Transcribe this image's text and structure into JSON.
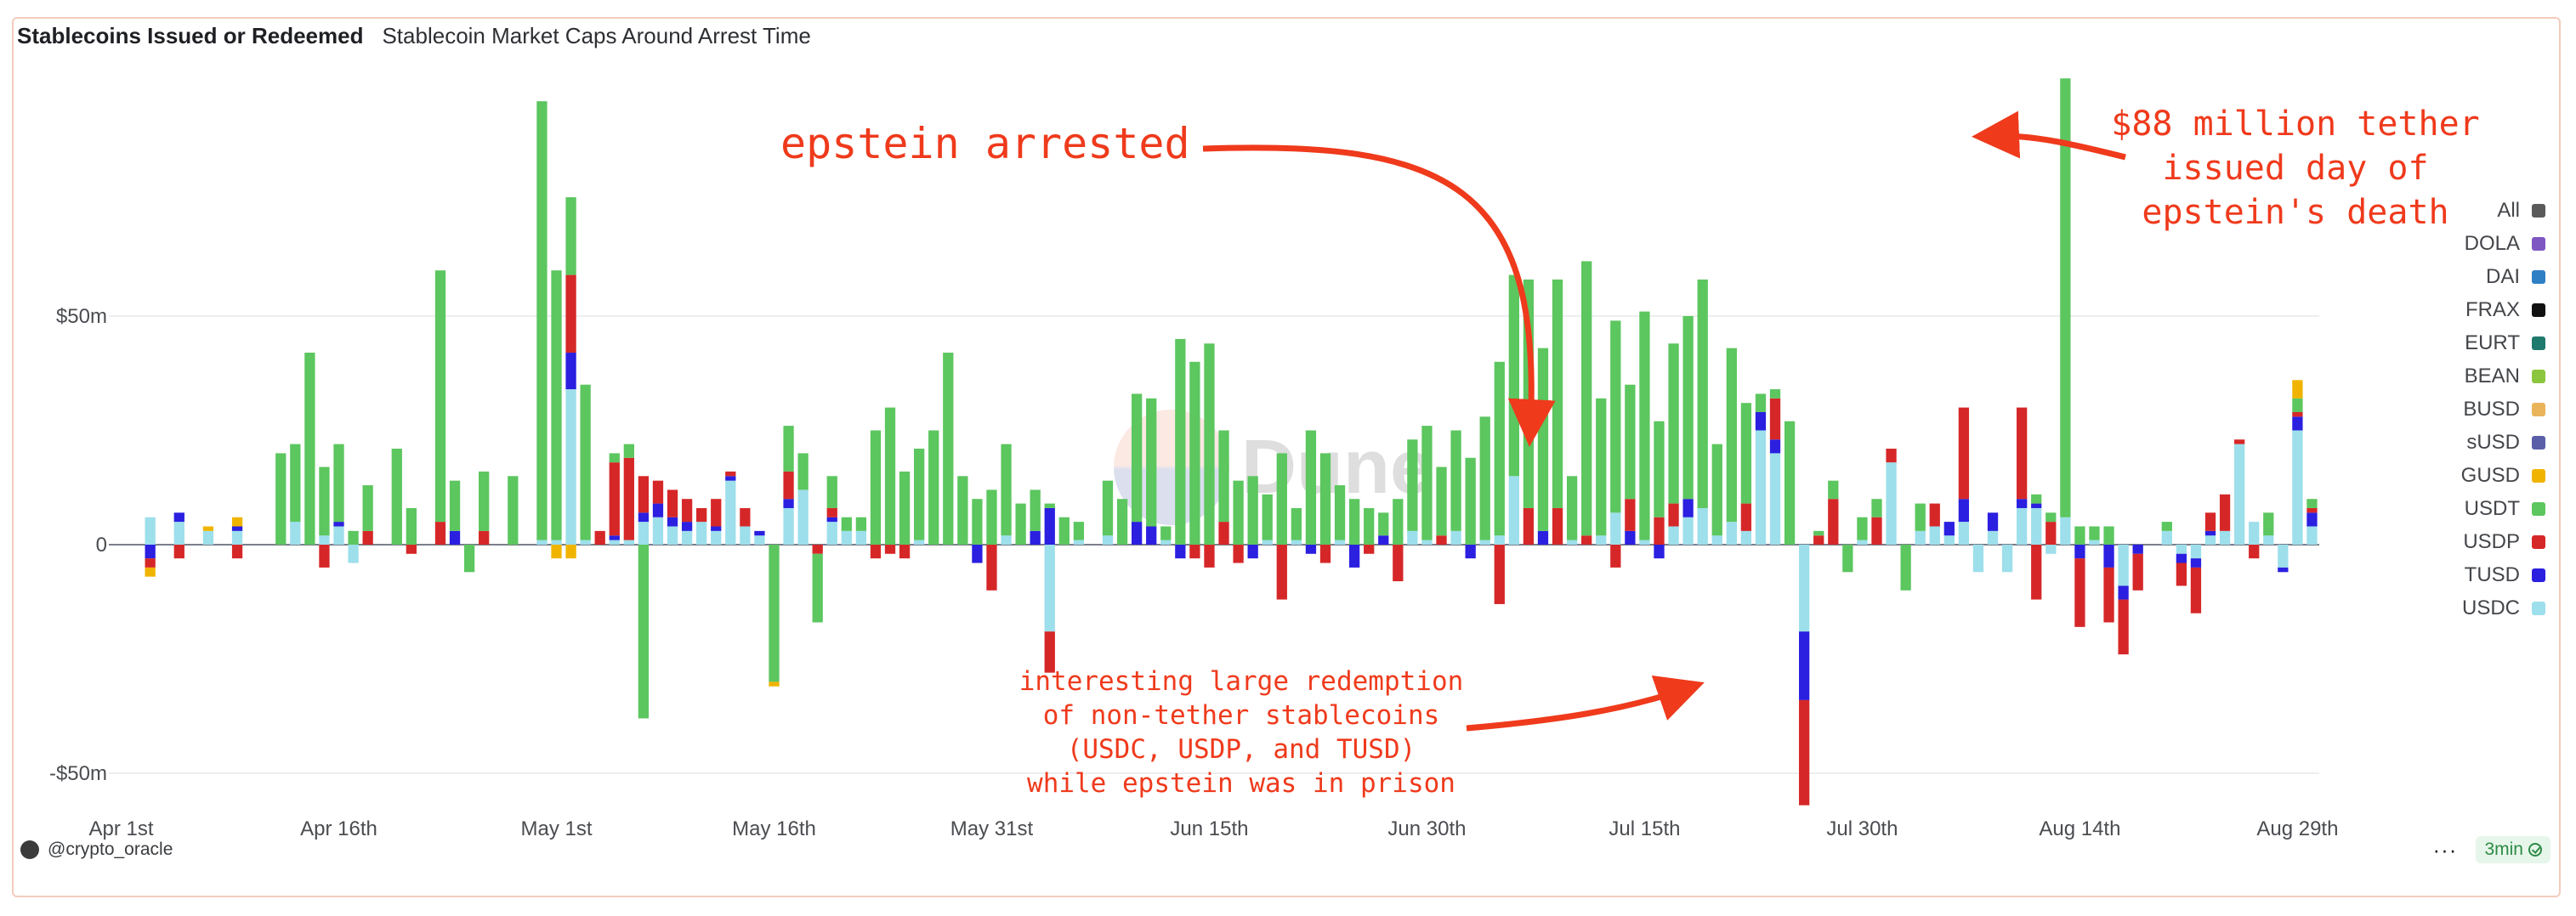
{
  "header": {
    "active_tab": "Stablecoins Issued or Redeemed",
    "tab": "Stablecoin Market Caps Around Arrest Time"
  },
  "watermark": "Dune",
  "footer": {
    "author": "@crypto_oracle",
    "menu_label": "···",
    "badge": "3min"
  },
  "legend": [
    {
      "label": "All",
      "color": "#5a5a5a"
    },
    {
      "label": "DOLA",
      "color": "#7e57c2"
    },
    {
      "label": "DAI",
      "color": "#2f7fc4"
    },
    {
      "label": "FRAX",
      "color": "#111111"
    },
    {
      "label": "EURT",
      "color": "#1f7a6e"
    },
    {
      "label": "BEAN",
      "color": "#8cc63f"
    },
    {
      "label": "BUSD",
      "color": "#e9b45a"
    },
    {
      "label": "sUSD",
      "color": "#5b5fa8"
    },
    {
      "label": "GUSD",
      "color": "#f0b400"
    },
    {
      "label": "USDT",
      "color": "#5cc65f"
    },
    {
      "label": "USDP",
      "color": "#d62728"
    },
    {
      "label": "TUSD",
      "color": "#2b1fe0"
    },
    {
      "label": "USDC",
      "color": "#9ddfeb"
    }
  ],
  "annotations": {
    "arrested": "epstein arrested",
    "death": [
      "$88 million tether",
      "issued day of",
      "epstein's death"
    ],
    "redemption": [
      "interesting large redemption",
      "of non-tether stablecoins",
      "(USDC, USDP, and TUSD)",
      "while epstein was in prison"
    ]
  },
  "chart_data": {
    "type": "bar",
    "stacked": true,
    "title": "Stablecoins Issued or Redeemed",
    "xlabel": "",
    "ylabel": "",
    "ylim": [
      -57,
      97
    ],
    "y_ticks": [
      {
        "value": 50,
        "label": "$50m"
      },
      {
        "value": 0,
        "label": "0"
      },
      {
        "value": -50,
        "label": "-$50m"
      }
    ],
    "x_ticks": [
      {
        "day": 0,
        "label": "Apr 1st"
      },
      {
        "day": 15,
        "label": "Apr 16th"
      },
      {
        "day": 30,
        "label": "May 1st"
      },
      {
        "day": 45,
        "label": "May 16th"
      },
      {
        "day": 60,
        "label": "May 31st"
      },
      {
        "day": 75,
        "label": "Jun 15th"
      },
      {
        "day": 90,
        "label": "Jun 30th"
      },
      {
        "day": 105,
        "label": "Jul 15th"
      },
      {
        "day": 120,
        "label": "Jul 30th"
      },
      {
        "day": 135,
        "label": "Aug 14th"
      },
      {
        "day": 150,
        "label": "Aug 29th"
      }
    ],
    "days": 152,
    "grid": true,
    "series_order": [
      "USDC",
      "TUSD",
      "USDP",
      "USDT",
      "GUSD"
    ],
    "values_usd_millions": {
      "2": {
        "USDC": 6,
        "TUSD": -3,
        "USDP": -2,
        "GUSD": -2
      },
      "4": {
        "USDC": 5,
        "TUSD": 2,
        "USDP": -3
      },
      "6": {
        "USDC": 3,
        "GUSD": 1
      },
      "8": {
        "USDC": 3,
        "TUSD": 1,
        "GUSD": 2,
        "USDP": -3
      },
      "11": {
        "USDT": 20
      },
      "12": {
        "USDT": 17,
        "USDC": 5
      },
      "13": {
        "USDT": 42
      },
      "14": {
        "USDT": 15,
        "USDC": 2,
        "USDP": -5
      },
      "15": {
        "USDT": 17,
        "USDC": 4,
        "TUSD": 1
      },
      "16": {
        "USDT": 3,
        "USDC": -4
      },
      "17": {
        "USDT": 10,
        "USDP": 3
      },
      "19": {
        "USDT": 21
      },
      "20": {
        "USDT": 8,
        "USDP": -2
      },
      "22": {
        "USDT": 55,
        "USDP": 5
      },
      "23": {
        "USDT": 11,
        "TUSD": 3
      },
      "24": {
        "USDT": -6
      },
      "25": {
        "USDT": 13,
        "USDP": 3
      },
      "27": {
        "USDT": 15
      },
      "29": {
        "USDT": 96,
        "USDC": 1
      },
      "30": {
        "USDT": 59,
        "USDC": 1,
        "GUSD": -3
      },
      "31": {
        "USDT": 17,
        "USDC": 34,
        "TUSD": 8,
        "USDP": 17,
        "GUSD": -3
      },
      "32": {
        "USDT": 34,
        "USDC": 1
      },
      "33": {
        "USDP": 3
      },
      "34": {
        "USDT": 2,
        "USDC": 1,
        "TUSD": 1,
        "USDP": 16
      },
      "35": {
        "USDT": 3,
        "USDC": 1,
        "USDP": 18
      },
      "36": {
        "USDT": -38,
        "USDC": 5,
        "TUSD": 2,
        "USDP": 8
      },
      "37": {
        "USDC": 6,
        "TUSD": 3,
        "USDP": 5
      },
      "38": {
        "USDC": 4,
        "TUSD": 2,
        "USDP": 6
      },
      "39": {
        "USDC": 3,
        "TUSD": 2,
        "USDP": 5
      },
      "40": {
        "USDC": 5,
        "USDP": 3
      },
      "41": {
        "USDC": 3,
        "TUSD": 1,
        "USDP": 6
      },
      "42": {
        "USDC": 14,
        "TUSD": 1,
        "USDP": 1
      },
      "43": {
        "USDC": 4,
        "USDP": 4
      },
      "44": {
        "USDC": 2,
        "TUSD": 1
      },
      "45": {
        "USDT": -30,
        "GUSD": -1
      },
      "46": {
        "USDT": 10,
        "TUSD": 2,
        "USDP": 6,
        "USDC": 8
      },
      "47": {
        "USDT": 8,
        "USDC": 12
      },
      "48": {
        "USDT": -15,
        "USDP": -2
      },
      "49": {
        "USDT": 7,
        "USDC": 5,
        "TUSD": 1,
        "USDP": 2
      },
      "50": {
        "USDT": 3,
        "USDC": 3
      },
      "51": {
        "USDT": 3,
        "USDC": 3
      },
      "52": {
        "USDT": 25,
        "USDP": -3
      },
      "53": {
        "USDT": 30,
        "USDP": -2
      },
      "54": {
        "USDT": 16,
        "USDP": -3
      },
      "55": {
        "USDT": 20,
        "USDC": 1
      },
      "56": {
        "USDT": 25
      },
      "57": {
        "USDT": 42
      },
      "58": {
        "USDT": 15
      },
      "59": {
        "USDT": 10,
        "TUSD": -4
      },
      "60": {
        "USDT": 12,
        "USDP": -10
      },
      "61": {
        "USDT": 20,
        "USDC": 2
      },
      "62": {
        "USDT": 9
      },
      "63": {
        "USDT": 9,
        "TUSD": 3
      },
      "64": {
        "USDT": 1,
        "TUSD": 8,
        "USDC": -19,
        "USDP": -9
      },
      "65": {
        "USDT": 6
      },
      "66": {
        "USDT": 4,
        "USDC": 1
      },
      "68": {
        "USDT": 12,
        "USDC": 2
      },
      "69": {
        "USDT": 10
      },
      "70": {
        "USDT": 28,
        "TUSD": 5
      },
      "71": {
        "USDT": 28,
        "TUSD": 4
      },
      "72": {
        "USDT": 3,
        "USDC": 1
      },
      "73": {
        "USDT": 45,
        "TUSD": -3
      },
      "74": {
        "USDT": 40,
        "USDP": -3
      },
      "75": {
        "USDT": 44,
        "USDP": -5
      },
      "76": {
        "USDT": 20,
        "USDP": 5
      },
      "77": {
        "USDT": 14,
        "USDP": -4
      },
      "78": {
        "USDT": 15,
        "TUSD": -3
      },
      "79": {
        "USDT": 10,
        "USDC": 1
      },
      "80": {
        "USDT": 20,
        "USDP": -12
      },
      "81": {
        "USDT": 7,
        "USDC": 1
      },
      "82": {
        "USDT": 25,
        "TUSD": -2
      },
      "83": {
        "USDT": 20,
        "USDP": -4
      },
      "84": {
        "USDT": 12,
        "USDC": 1
      },
      "85": {
        "USDT": 10,
        "TUSD": -5
      },
      "86": {
        "USDT": 8,
        "USDP": -2
      },
      "87": {
        "USDT": 5,
        "TUSD": 2
      },
      "88": {
        "USDT": 10,
        "USDP": -8
      },
      "89": {
        "USDT": 20,
        "USDC": 3
      },
      "90": {
        "USDT": 25,
        "USDC": 1
      },
      "91": {
        "USDT": 15,
        "USDP": 2
      },
      "92": {
        "USDT": 22,
        "USDC": 3
      },
      "93": {
        "USDT": 19,
        "TUSD": -3
      },
      "94": {
        "USDT": 27,
        "USDC": 1
      },
      "95": {
        "USDT": 38,
        "USDC": 2,
        "USDP": -13
      },
      "96": {
        "USDT": 44,
        "USDC": 15
      },
      "97": {
        "USDT": 50,
        "USDP": 8
      },
      "98": {
        "USDT": 40,
        "TUSD": 3
      },
      "99": {
        "USDT": 50,
        "USDP": 8
      },
      "100": {
        "USDT": 14,
        "USDC": 1
      },
      "101": {
        "USDT": 60,
        "USDP": 2
      },
      "102": {
        "USDT": 30,
        "USDC": 2
      },
      "103": {
        "USDT": 42,
        "USDC": 7,
        "USDP": -5
      },
      "104": {
        "USDT": 25,
        "TUSD": 3,
        "USDP": 7
      },
      "105": {
        "USDT": 50,
        "USDC": 1
      },
      "106": {
        "USDT": 21,
        "TUSD": -3,
        "USDP": 6
      },
      "107": {
        "USDT": 35,
        "USDC": 4,
        "USDP": 5
      },
      "108": {
        "USDT": 40,
        "USDC": 6,
        "TUSD": 4
      },
      "109": {
        "USDT": 50,
        "USDC": 8
      },
      "110": {
        "USDT": 20,
        "USDC": 2
      },
      "111": {
        "USDT": 38,
        "USDC": 5
      },
      "112": {
        "USDT": 22,
        "USDC": 3,
        "USDP": 6
      },
      "113": {
        "USDT": 4,
        "USDC": 25,
        "TUSD": 4
      },
      "114": {
        "USDT": 2,
        "USDC": 20,
        "TUSD": 3,
        "USDP": 9
      },
      "115": {
        "USDT": 27
      },
      "116": {
        "USDC": -19,
        "TUSD": -15,
        "USDP": -23
      },
      "117": {
        "USDT": 1,
        "USDP": 2
      },
      "118": {
        "USDT": 4,
        "USDP": 10
      },
      "119": {
        "USDT": -6
      },
      "120": {
        "USDT": 5,
        "USDC": 1
      },
      "121": {
        "USDT": 4,
        "USDP": 6
      },
      "122": {
        "USDC": 18,
        "USDP": 3
      },
      "123": {
        "USDT": -10
      },
      "124": {
        "USDT": 6,
        "USDC": 3
      },
      "125": {
        "USDC": 4,
        "USDP": 5
      },
      "126": {
        "USDC": 2,
        "TUSD": 3
      },
      "127": {
        "USDC": 5,
        "TUSD": 5,
        "USDP": 20
      },
      "128": {
        "USDC": -6
      },
      "129": {
        "USDC": 3,
        "TUSD": 4
      },
      "130": {
        "USDC": -6
      },
      "131": {
        "USDC": 8,
        "TUSD": 2,
        "USDP": 20
      },
      "132": {
        "USDT": 2,
        "USDC": 8,
        "TUSD": 1,
        "USDP": -12
      },
      "133": {
        "USDT": 2,
        "USDC": -2,
        "USDP": 5
      },
      "134": {
        "USDT": 96,
        "USDC": 6
      },
      "135": {
        "USDT": 4,
        "TUSD": -3,
        "USDP": -15
      },
      "136": {
        "USDT": 3,
        "USDC": 1
      },
      "137": {
        "USDT": 4,
        "TUSD": -5,
        "USDP": -12
      },
      "138": {
        "USDC": -9,
        "TUSD": -3,
        "USDP": -12
      },
      "139": {
        "TUSD": -2,
        "USDP": -8
      },
      "141": {
        "USDT": 2,
        "USDC": 3
      },
      "142": {
        "USDC": -2,
        "TUSD": -2,
        "USDP": -5
      },
      "143": {
        "USDC": -3,
        "TUSD": -2,
        "USDP": -10
      },
      "144": {
        "USDC": 2,
        "TUSD": 1,
        "USDP": 4
      },
      "145": {
        "USDC": 3,
        "USDP": 8
      },
      "146": {
        "USDC": 22,
        "USDP": 1
      },
      "147": {
        "USDC": 5,
        "USDP": -3
      },
      "148": {
        "USDT": 5,
        "USDC": 2
      },
      "149": {
        "USDC": -5,
        "TUSD": -1
      },
      "150": {
        "USDT": 3,
        "USDC": 25,
        "TUSD": 3,
        "USDP": 1,
        "GUSD": 4
      },
      "151": {
        "USDT": 2,
        "USDC": 4,
        "TUSD": 3,
        "USDP": 1
      }
    }
  }
}
